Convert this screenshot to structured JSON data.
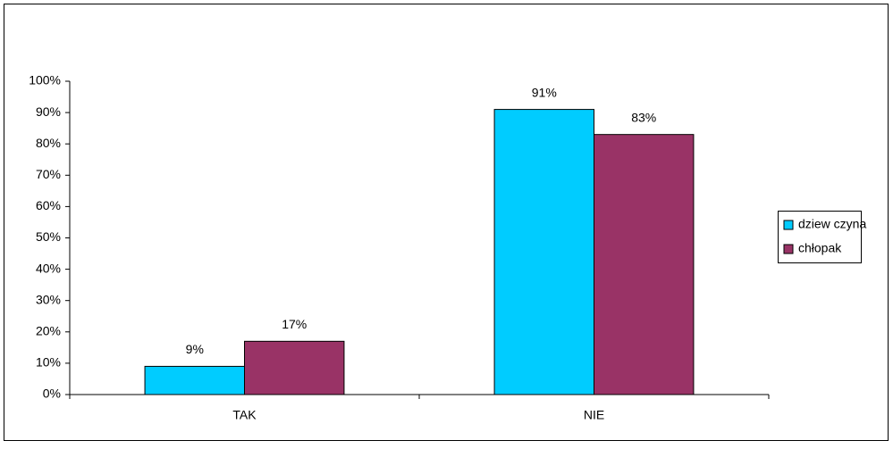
{
  "chart_data": {
    "type": "bar",
    "categories": [
      "TAK",
      "NIE"
    ],
    "series": [
      {
        "name": "dziew czyna",
        "color": "#00ccff",
        "values": [
          9,
          91
        ],
        "value_labels": [
          "9%",
          "91%"
        ]
      },
      {
        "name": "chłopak",
        "color": "#993366",
        "values": [
          17,
          83
        ],
        "value_labels": [
          "17%",
          "83%"
        ]
      }
    ],
    "ylim": [
      0,
      100
    ],
    "yticks": [
      {
        "value": 0,
        "label": "0%"
      },
      {
        "value": 10,
        "label": "10%"
      },
      {
        "value": 20,
        "label": "20%"
      },
      {
        "value": 30,
        "label": "30%"
      },
      {
        "value": 40,
        "label": "40%"
      },
      {
        "value": 50,
        "label": "50%"
      },
      {
        "value": 60,
        "label": "60%"
      },
      {
        "value": 70,
        "label": "70%"
      },
      {
        "value": 80,
        "label": "80%"
      },
      {
        "value": 90,
        "label": "90%"
      },
      {
        "value": 100,
        "label": "100%"
      }
    ],
    "grid": false,
    "legend": "right"
  }
}
